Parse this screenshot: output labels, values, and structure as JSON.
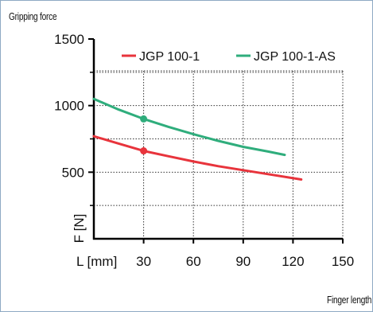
{
  "chart_data": {
    "type": "line",
    "title": "Gripping force",
    "xlabel": "Finger length",
    "x_axis_unit_label": "L [mm]",
    "y_axis_unit_label": "F [N]",
    "xlim": [
      0,
      150
    ],
    "ylim": [
      0,
      1500
    ],
    "x_ticks": [
      30,
      60,
      90,
      120,
      150
    ],
    "y_ticks": [
      500,
      1000,
      1500
    ],
    "grid": true,
    "legend_position": "top",
    "series": [
      {
        "name": "JGP 100-1",
        "color": "#e8343c",
        "x": [
          0,
          15,
          30,
          45,
          60,
          75,
          90,
          105,
          125
        ],
        "y": [
          770,
          715,
          660,
          620,
          580,
          545,
          515,
          485,
          445
        ],
        "marker_x": 30,
        "marker_y": 660
      },
      {
        "name": "JGP 100-1-AS",
        "color": "#2fad7c",
        "x": [
          0,
          15,
          30,
          45,
          60,
          75,
          90,
          105,
          115
        ],
        "y": [
          1050,
          970,
          900,
          840,
          785,
          735,
          690,
          655,
          630
        ],
        "marker_x": 30,
        "marker_y": 900
      }
    ]
  }
}
